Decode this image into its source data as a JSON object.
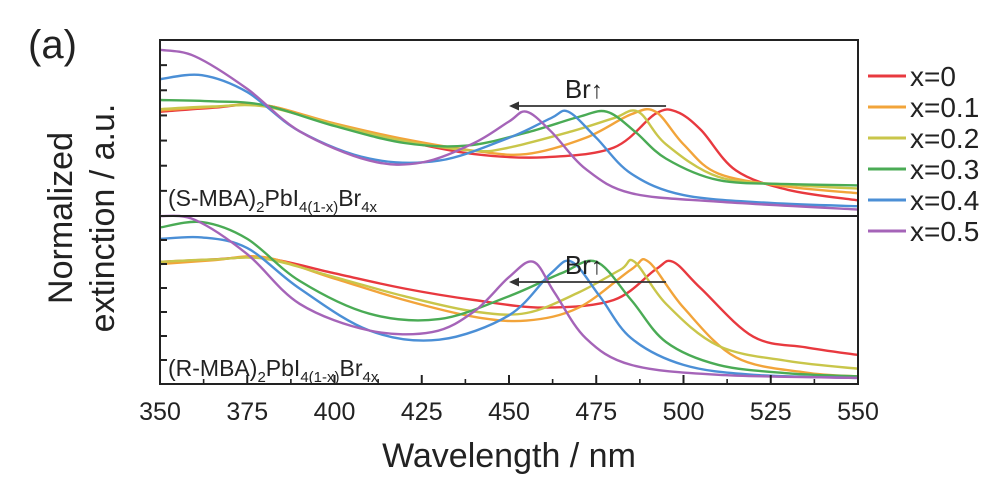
{
  "panel_label": "(a)",
  "colors": {
    "x=0": "#e8393f",
    "x=0.1": "#f2a43a",
    "x=0.2": "#c9c64a",
    "x=0.3": "#4aab55",
    "x=0.4": "#4b8fd6",
    "x=0.5": "#a564b8"
  },
  "chart_data": {
    "type": "line",
    "title": "",
    "xlabel": "Wavelength / nm",
    "ylabel": [
      "Normalized",
      "extinction / a.u."
    ],
    "xlim": [
      350,
      550
    ],
    "xticks": [
      "350",
      "375",
      "400",
      "425",
      "450",
      "475",
      "500",
      "525",
      "550"
    ],
    "ylim_top": [
      0,
      2.7
    ],
    "ylim_bottom": [
      0,
      2.2
    ],
    "grid": false,
    "legend": {
      "position": "right",
      "entries": [
        "x=0",
        "x=0.1",
        "x=0.2",
        "x=0.3",
        "x=0.4",
        "x=0.5"
      ]
    },
    "panels": [
      {
        "label_parts": [
          "(S-MBA)",
          "2",
          "PbI",
          "4(1-x)",
          "Br",
          "4x"
        ],
        "arrow_label": "Br",
        "arrow_glyph": "↑",
        "arrow_from_nm": 495,
        "arrow_to_nm": 450,
        "series": [
          {
            "name": "x=0",
            "points": [
              [
                350,
                1.6
              ],
              [
                365,
                1.66
              ],
              [
                380,
                1.7
              ],
              [
                400,
                1.4
              ],
              [
                420,
                1.15
              ],
              [
                440,
                0.95
              ],
              [
                460,
                0.9
              ],
              [
                480,
                1.05
              ],
              [
                492,
                1.57
              ],
              [
                498,
                1.6
              ],
              [
                505,
                1.32
              ],
              [
                515,
                0.7
              ],
              [
                530,
                0.4
              ],
              [
                550,
                0.24
              ]
            ]
          },
          {
            "name": "x=0.1",
            "points": [
              [
                350,
                1.62
              ],
              [
                365,
                1.67
              ],
              [
                380,
                1.7
              ],
              [
                400,
                1.42
              ],
              [
                420,
                1.18
              ],
              [
                440,
                1.0
              ],
              [
                455,
                0.95
              ],
              [
                472,
                1.2
              ],
              [
                485,
                1.56
              ],
              [
                492,
                1.6
              ],
              [
                500,
                1.1
              ],
              [
                510,
                0.65
              ],
              [
                530,
                0.45
              ],
              [
                550,
                0.35
              ]
            ]
          },
          {
            "name": "x=0.2",
            "points": [
              [
                350,
                1.64
              ],
              [
                365,
                1.68
              ],
              [
                380,
                1.68
              ],
              [
                400,
                1.4
              ],
              [
                420,
                1.15
              ],
              [
                440,
                1.0
              ],
              [
                450,
                1.05
              ],
              [
                468,
                1.3
              ],
              [
                480,
                1.5
              ],
              [
                487,
                1.6
              ],
              [
                495,
                1.1
              ],
              [
                510,
                0.6
              ],
              [
                530,
                0.48
              ],
              [
                550,
                0.42
              ]
            ]
          },
          {
            "name": "x=0.3",
            "points": [
              [
                350,
                1.78
              ],
              [
                365,
                1.76
              ],
              [
                380,
                1.7
              ],
              [
                400,
                1.38
              ],
              [
                420,
                1.12
              ],
              [
                438,
                1.08
              ],
              [
                455,
                1.28
              ],
              [
                470,
                1.52
              ],
              [
                478,
                1.6
              ],
              [
                486,
                1.3
              ],
              [
                495,
                0.88
              ],
              [
                510,
                0.55
              ],
              [
                530,
                0.49
              ],
              [
                550,
                0.47
              ]
            ]
          },
          {
            "name": "x=0.4",
            "points": [
              [
                350,
                2.1
              ],
              [
                362,
                2.16
              ],
              [
                375,
                1.9
              ],
              [
                390,
                1.3
              ],
              [
                410,
                0.88
              ],
              [
                430,
                0.85
              ],
              [
                450,
                1.2
              ],
              [
                462,
                1.5
              ],
              [
                467,
                1.6
              ],
              [
                475,
                1.2
              ],
              [
                485,
                0.65
              ],
              [
                500,
                0.32
              ],
              [
                525,
                0.2
              ],
              [
                550,
                0.15
              ]
            ]
          },
          {
            "name": "x=0.5",
            "points": [
              [
                350,
                2.55
              ],
              [
                360,
                2.45
              ],
              [
                375,
                1.95
              ],
              [
                390,
                1.3
              ],
              [
                410,
                0.85
              ],
              [
                425,
                0.82
              ],
              [
                440,
                1.12
              ],
              [
                450,
                1.45
              ],
              [
                455,
                1.6
              ],
              [
                462,
                1.3
              ],
              [
                472,
                0.72
              ],
              [
                485,
                0.35
              ],
              [
                510,
                0.22
              ],
              [
                550,
                0.1
              ]
            ]
          }
        ]
      },
      {
        "label_parts": [
          "(R-MBA)",
          "2",
          "PbI",
          "4(1-x)",
          "Br",
          "4x"
        ],
        "arrow_label": "Br",
        "arrow_glyph": "↑",
        "arrow_from_nm": 495,
        "arrow_to_nm": 450,
        "series": [
          {
            "name": "x=0",
            "points": [
              [
                350,
                1.6
              ],
              [
                365,
                1.63
              ],
              [
                380,
                1.65
              ],
              [
                400,
                1.45
              ],
              [
                420,
                1.25
              ],
              [
                440,
                1.1
              ],
              [
                460,
                1.0
              ],
              [
                480,
                1.1
              ],
              [
                492,
                1.5
              ],
              [
                497,
                1.6
              ],
              [
                505,
                1.25
              ],
              [
                520,
                0.62
              ],
              [
                535,
                0.48
              ],
              [
                550,
                0.38
              ]
            ]
          },
          {
            "name": "x=0.1",
            "points": [
              [
                350,
                1.57
              ],
              [
                365,
                1.62
              ],
              [
                380,
                1.66
              ],
              [
                400,
                1.38
              ],
              [
                420,
                1.1
              ],
              [
                440,
                0.88
              ],
              [
                455,
                0.83
              ],
              [
                470,
                1.0
              ],
              [
                485,
                1.5
              ],
              [
                490,
                1.6
              ],
              [
                500,
                1.0
              ],
              [
                515,
                0.35
              ],
              [
                535,
                0.15
              ],
              [
                550,
                0.1
              ]
            ]
          },
          {
            "name": "x=0.2",
            "points": [
              [
                350,
                1.6
              ],
              [
                365,
                1.63
              ],
              [
                380,
                1.64
              ],
              [
                400,
                1.4
              ],
              [
                420,
                1.15
              ],
              [
                440,
                0.95
              ],
              [
                455,
                0.93
              ],
              [
                470,
                1.2
              ],
              [
                482,
                1.5
              ],
              [
                486,
                1.6
              ],
              [
                495,
                1.05
              ],
              [
                510,
                0.5
              ],
              [
                530,
                0.3
              ],
              [
                550,
                0.2
              ]
            ]
          },
          {
            "name": "x=0.3",
            "points": [
              [
                350,
                2.05
              ],
              [
                362,
                2.12
              ],
              [
                375,
                1.9
              ],
              [
                390,
                1.35
              ],
              [
                410,
                0.92
              ],
              [
                430,
                0.85
              ],
              [
                450,
                1.15
              ],
              [
                465,
                1.45
              ],
              [
                475,
                1.6
              ],
              [
                485,
                1.1
              ],
              [
                495,
                0.55
              ],
              [
                510,
                0.25
              ],
              [
                530,
                0.14
              ],
              [
                550,
                0.1
              ]
            ]
          },
          {
            "name": "x=0.4",
            "points": [
              [
                350,
                1.9
              ],
              [
                362,
                1.92
              ],
              [
                375,
                1.78
              ],
              [
                390,
                1.25
              ],
              [
                410,
                0.7
              ],
              [
                430,
                0.58
              ],
              [
                450,
                0.9
              ],
              [
                462,
                1.45
              ],
              [
                468,
                1.6
              ],
              [
                476,
                1.15
              ],
              [
                485,
                0.6
              ],
              [
                500,
                0.25
              ],
              [
                520,
                0.12
              ],
              [
                550,
                0.08
              ]
            ]
          },
          {
            "name": "x=0.5",
            "points": [
              [
                350,
                2.2
              ],
              [
                360,
                2.15
              ],
              [
                375,
                1.7
              ],
              [
                390,
                1.05
              ],
              [
                410,
                0.7
              ],
              [
                428,
                0.68
              ],
              [
                440,
                0.95
              ],
              [
                450,
                1.4
              ],
              [
                457,
                1.6
              ],
              [
                463,
                1.2
              ],
              [
                472,
                0.6
              ],
              [
                485,
                0.25
              ],
              [
                510,
                0.12
              ],
              [
                550,
                0.08
              ]
            ]
          }
        ]
      }
    ]
  }
}
